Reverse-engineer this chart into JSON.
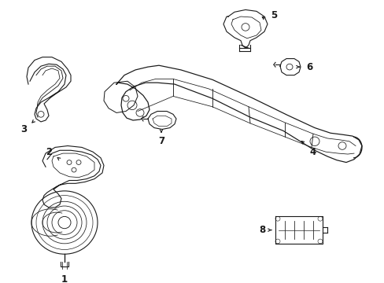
{
  "background_color": "#ffffff",
  "line_color": "#1a1a1a",
  "label_color": "#1a1a1a",
  "fig_width": 4.89,
  "fig_height": 3.6,
  "dpi": 100,
  "lw": 0.8,
  "fontsize": 8.5
}
